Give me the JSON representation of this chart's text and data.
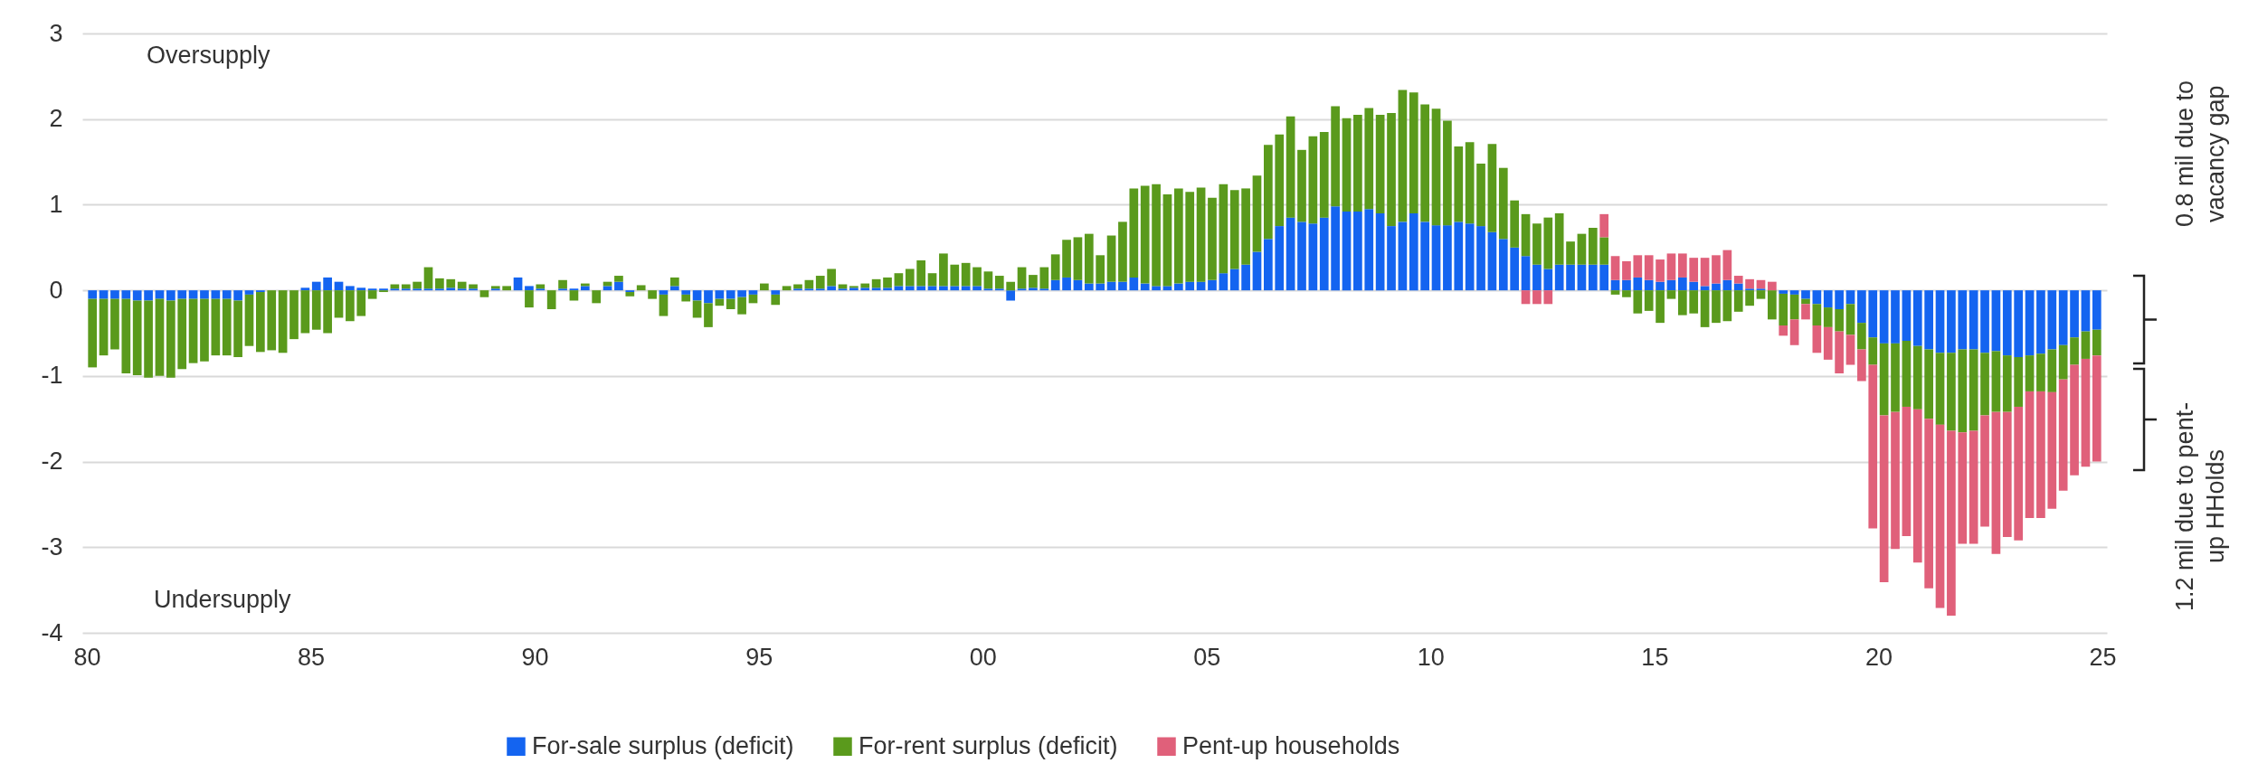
{
  "chart_data": {
    "type": "bar",
    "stacked": true,
    "grid": "y",
    "legend": "bottom",
    "xlim": [
      1980,
      2025
    ],
    "ylim": [
      -4,
      3
    ],
    "yticks": [
      -4,
      -3,
      -2,
      -1,
      0,
      1,
      2,
      3
    ],
    "xticks": [
      {
        "value": 1980,
        "label": "80"
      },
      {
        "value": 1985,
        "label": "85"
      },
      {
        "value": 1990,
        "label": "90"
      },
      {
        "value": 1995,
        "label": "95"
      },
      {
        "value": 2000,
        "label": "00"
      },
      {
        "value": 2005,
        "label": "05"
      },
      {
        "value": 2010,
        "label": "10"
      },
      {
        "value": 2015,
        "label": "15"
      },
      {
        "value": 2020,
        "label": "20"
      },
      {
        "value": 2025,
        "label": "25"
      }
    ],
    "annotations": [
      "Oversupply",
      "Undersupply",
      "0.8 mil due to vacancy gap",
      "1.2 mil due to pent-up HHolds"
    ],
    "x": [
      1980.125,
      1980.375,
      1980.625,
      1980.875,
      1981.125,
      1981.375,
      1981.625,
      1981.875,
      1982.125,
      1982.375,
      1982.625,
      1982.875,
      1983.125,
      1983.375,
      1983.625,
      1983.875,
      1984.125,
      1984.375,
      1984.625,
      1984.875,
      1985.125,
      1985.375,
      1985.625,
      1985.875,
      1986.125,
      1986.375,
      1986.625,
      1986.875,
      1987.125,
      1987.375,
      1987.625,
      1987.875,
      1988.125,
      1988.375,
      1988.625,
      1988.875,
      1989.125,
      1989.375,
      1989.625,
      1989.875,
      1990.125,
      1990.375,
      1990.625,
      1990.875,
      1991.125,
      1991.375,
      1991.625,
      1991.875,
      1992.125,
      1992.375,
      1992.625,
      1992.875,
      1993.125,
      1993.375,
      1993.625,
      1993.875,
      1994.125,
      1994.375,
      1994.625,
      1994.875,
      1995.125,
      1995.375,
      1995.625,
      1995.875,
      1996.125,
      1996.375,
      1996.625,
      1996.875,
      1997.125,
      1997.375,
      1997.625,
      1997.875,
      1998.125,
      1998.375,
      1998.625,
      1998.875,
      1999.125,
      1999.375,
      1999.625,
      1999.875,
      2000.125,
      2000.375,
      2000.625,
      2000.875,
      2001.125,
      2001.375,
      2001.625,
      2001.875,
      2002.125,
      2002.375,
      2002.625,
      2002.875,
      2003.125,
      2003.375,
      2003.625,
      2003.875,
      2004.125,
      2004.375,
      2004.625,
      2004.875,
      2005.125,
      2005.375,
      2005.625,
      2005.875,
      2006.125,
      2006.375,
      2006.625,
      2006.875,
      2007.125,
      2007.375,
      2007.625,
      2007.875,
      2008.125,
      2008.375,
      2008.625,
      2008.875,
      2009.125,
      2009.375,
      2009.625,
      2009.875,
      2010.125,
      2010.375,
      2010.625,
      2010.875,
      2011.125,
      2011.375,
      2011.625,
      2011.875,
      2012.125,
      2012.375,
      2012.625,
      2012.875,
      2013.125,
      2013.375,
      2013.625,
      2013.875,
      2014.125,
      2014.375,
      2014.625,
      2014.875,
      2015.125,
      2015.375,
      2015.625,
      2015.875,
      2016.125,
      2016.375,
      2016.625,
      2016.875,
      2017.125,
      2017.375,
      2017.625,
      2017.875,
      2018.125,
      2018.375,
      2018.625,
      2018.875,
      2019.125,
      2019.375,
      2019.625,
      2019.875,
      2020.125,
      2020.375,
      2020.625,
      2020.875,
      2021.125,
      2021.375,
      2021.625,
      2021.875,
      2022.125,
      2022.375,
      2022.625,
      2022.875,
      2023.125,
      2023.375,
      2023.625,
      2023.875,
      2024.125,
      2024.375,
      2024.625,
      2024.875
    ],
    "series": [
      {
        "name": "For-sale surplus (deficit)",
        "color": "#1464f0",
        "values": [
          -0.1,
          -0.1,
          -0.1,
          -0.1,
          -0.12,
          -0.12,
          -0.1,
          -0.12,
          -0.1,
          -0.1,
          -0.1,
          -0.1,
          -0.1,
          -0.12,
          -0.05,
          -0.02,
          0,
          0,
          0,
          0.03,
          0.1,
          0.15,
          0.1,
          0.05,
          0.03,
          0.02,
          0.02,
          0.02,
          0.02,
          0.02,
          0.02,
          0.02,
          0.03,
          0.02,
          0.02,
          0,
          0.02,
          0,
          0.15,
          0.05,
          0.02,
          0,
          0.02,
          0.02,
          0.05,
          0,
          0.05,
          0.1,
          -0.02,
          0,
          0,
          -0.05,
          0.05,
          -0.05,
          -0.12,
          -0.15,
          -0.1,
          -0.1,
          -0.08,
          -0.05,
          0,
          -0.05,
          0,
          0.02,
          0.02,
          0.02,
          0.05,
          0.02,
          0.03,
          0.03,
          0.03,
          0.03,
          0.05,
          0.05,
          0.05,
          0.05,
          0.05,
          0.05,
          0.05,
          0.05,
          0.02,
          0.02,
          -0.12,
          0.02,
          0.03,
          0.02,
          0.12,
          0.15,
          0.12,
          0.08,
          0.08,
          0.1,
          0.1,
          0.15,
          0.08,
          0.05,
          0.05,
          0.08,
          0.1,
          0.1,
          0.12,
          0.2,
          0.25,
          0.3,
          0.45,
          0.6,
          0.75,
          0.85,
          0.8,
          0.78,
          0.85,
          0.98,
          0.92,
          0.92,
          0.95,
          0.9,
          0.75,
          0.8,
          0.9,
          0.8,
          0.76,
          0.76,
          0.8,
          0.78,
          0.75,
          0.68,
          0.6,
          0.5,
          0.4,
          0.3,
          0.25,
          0.3,
          0.3,
          0.3,
          0.3,
          0.3,
          0.12,
          0.12,
          0.15,
          0.12,
          0.1,
          0.12,
          0.15,
          0.1,
          0.05,
          0.08,
          0.12,
          0.08,
          0.02,
          0.02,
          0,
          -0.04,
          -0.05,
          -0.1,
          -0.16,
          -0.2,
          -0.22,
          -0.16,
          -0.38,
          -0.55,
          -0.62,
          -0.62,
          -0.59,
          -0.65,
          -0.69,
          -0.73,
          -0.73,
          -0.69,
          -0.69,
          -0.73,
          -0.71,
          -0.76,
          -0.78,
          -0.76,
          -0.74,
          -0.69,
          -0.64,
          -0.55,
          -0.48,
          -0.46
        ]
      },
      {
        "name": "For-rent surplus (deficit)",
        "color": "#5a9a1c",
        "values": [
          -0.8,
          -0.66,
          -0.59,
          -0.87,
          -0.87,
          -0.9,
          -0.9,
          -0.9,
          -0.82,
          -0.75,
          -0.73,
          -0.66,
          -0.66,
          -0.66,
          -0.6,
          -0.7,
          -0.7,
          -0.73,
          -0.57,
          -0.5,
          -0.46,
          -0.5,
          -0.32,
          -0.36,
          -0.3,
          -0.1,
          -0.02,
          0.05,
          0.05,
          0.08,
          0.25,
          0.12,
          0.1,
          0.08,
          0.05,
          -0.08,
          0.03,
          0.05,
          0,
          -0.2,
          0.05,
          -0.22,
          0.1,
          -0.12,
          0.03,
          -0.15,
          0.05,
          0.07,
          -0.05,
          0.06,
          -0.1,
          -0.25,
          0.1,
          -0.08,
          -0.2,
          -0.28,
          -0.08,
          -0.12,
          -0.2,
          -0.1,
          0.08,
          -0.12,
          0.05,
          0.05,
          0.1,
          0.15,
          0.2,
          0.05,
          0.02,
          0.05,
          0.1,
          0.12,
          0.15,
          0.2,
          0.3,
          0.15,
          0.38,
          0.25,
          0.27,
          0.22,
          0.2,
          0.15,
          0.1,
          0.25,
          0.15,
          0.25,
          0.3,
          0.44,
          0.5,
          0.58,
          0.33,
          0.54,
          0.7,
          1.04,
          1.14,
          1.19,
          1.07,
          1.11,
          1.05,
          1.1,
          0.96,
          1.04,
          0.92,
          0.89,
          0.89,
          1.1,
          1.07,
          1.18,
          0.84,
          1.02,
          1,
          1.17,
          1.09,
          1.13,
          1.18,
          1.15,
          1.32,
          1.54,
          1.41,
          1.37,
          1.36,
          1.22,
          0.88,
          0.95,
          0.73,
          1.03,
          0.83,
          0.55,
          0.49,
          0.48,
          0.6,
          0.6,
          0.27,
          0.36,
          0.43,
          0.32,
          -0.05,
          -0.08,
          -0.27,
          -0.24,
          -0.38,
          -0.1,
          -0.29,
          -0.27,
          -0.43,
          -0.38,
          -0.36,
          -0.25,
          -0.18,
          -0.1,
          -0.34,
          -0.37,
          -0.29,
          -0.06,
          -0.25,
          -0.23,
          -0.26,
          -0.36,
          -0.31,
          -0.32,
          -0.84,
          -0.8,
          -0.77,
          -0.74,
          -0.81,
          -0.84,
          -0.91,
          -0.97,
          -0.95,
          -0.73,
          -0.71,
          -0.66,
          -0.58,
          -0.42,
          -0.44,
          -0.5,
          -0.4,
          -0.32,
          -0.32,
          -0.3
        ]
      },
      {
        "name": "Pent-up households",
        "color": "#e0607a",
        "values": [
          null,
          null,
          null,
          null,
          null,
          null,
          null,
          null,
          null,
          null,
          null,
          null,
          null,
          null,
          null,
          null,
          null,
          null,
          null,
          null,
          null,
          null,
          null,
          null,
          null,
          null,
          null,
          null,
          null,
          null,
          null,
          null,
          null,
          null,
          null,
          null,
          null,
          null,
          null,
          null,
          null,
          null,
          null,
          null,
          null,
          null,
          null,
          null,
          null,
          null,
          null,
          null,
          null,
          null,
          null,
          null,
          null,
          null,
          null,
          null,
          null,
          null,
          null,
          null,
          null,
          null,
          null,
          null,
          null,
          null,
          null,
          null,
          null,
          null,
          null,
          null,
          null,
          null,
          null,
          null,
          null,
          null,
          null,
          null,
          null,
          null,
          null,
          null,
          null,
          null,
          null,
          null,
          null,
          null,
          null,
          null,
          null,
          null,
          null,
          null,
          null,
          null,
          null,
          null,
          null,
          null,
          null,
          null,
          null,
          null,
          null,
          null,
          null,
          null,
          null,
          null,
          null,
          null,
          null,
          null,
          null,
          null,
          null,
          null,
          null,
          null,
          null,
          null,
          -0.16,
          -0.16,
          -0.16,
          null,
          null,
          null,
          null,
          0.27,
          0.28,
          0.22,
          0.26,
          0.29,
          0.26,
          0.31,
          0.28,
          0.28,
          0.33,
          0.33,
          0.35,
          0.09,
          0.11,
          0.1,
          0.1,
          -0.12,
          -0.3,
          -0.18,
          -0.32,
          -0.38,
          -0.49,
          -0.35,
          -0.37,
          -1.91,
          -1.95,
          -1.6,
          -1.51,
          -1.79,
          -1.98,
          -2.14,
          -2.16,
          -1.3,
          -1.32,
          -1.3,
          -1.66,
          -1.46,
          -1.56,
          -1.48,
          -1.48,
          -1.36,
          -1.3,
          -1.29,
          -1.26,
          -1.24
        ]
      }
    ]
  }
}
